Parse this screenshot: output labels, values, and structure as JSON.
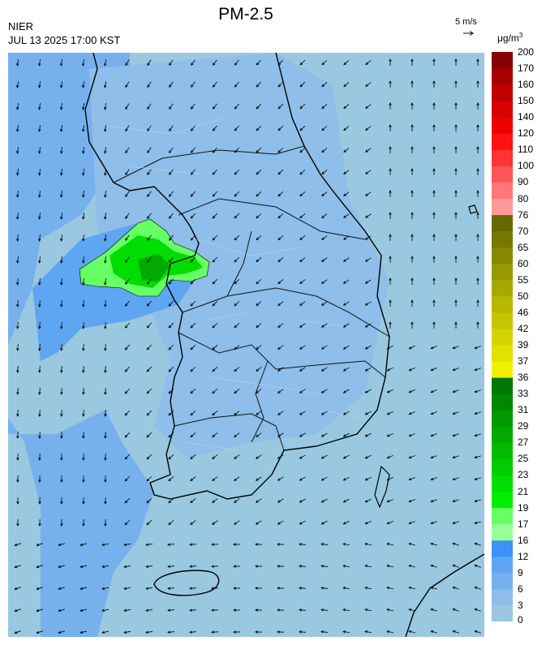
{
  "header": {
    "agency": "NIER",
    "datetime": "JUL 13 2025 17:00 KST",
    "title": "PM-2.5",
    "wind_reference": "5 m/s",
    "unit_base": "μg/m",
    "unit_exp": "3"
  },
  "legend": {
    "ticks": [
      "0",
      "3",
      "6",
      "9",
      "12",
      "16",
      "17",
      "19",
      "21",
      "23",
      "25",
      "27",
      "29",
      "31",
      "33",
      "36",
      "37",
      "39",
      "42",
      "46",
      "50",
      "55",
      "60",
      "65",
      "70",
      "76",
      "80",
      "90",
      "100",
      "110",
      "120",
      "140",
      "150",
      "160",
      "170",
      "200"
    ],
    "colors": [
      "#99c8e0",
      "#8ebee9",
      "#76b1ee",
      "#5ea6f1",
      "#3b93f5",
      "#99ff99",
      "#66ff66",
      "#00ee00",
      "#00dd00",
      "#00cc00",
      "#00bb00",
      "#00aa00",
      "#009900",
      "#008800",
      "#007700",
      "#f0f000",
      "#e2e200",
      "#d4d400",
      "#c6c600",
      "#b8b800",
      "#a8a800",
      "#989800",
      "#888800",
      "#787800",
      "#686800",
      "#ff9999",
      "#ff7777",
      "#ff5555",
      "#ff3333",
      "#ff1111",
      "#ee0000",
      "#d80000",
      "#c00000",
      "#a80000",
      "#880000"
    ]
  },
  "map": {
    "background_color": "#99c8e0",
    "coast_color": "#000000",
    "pollution_color_low": "#76b1ee",
    "pollution_color_high": "#00dd00"
  }
}
